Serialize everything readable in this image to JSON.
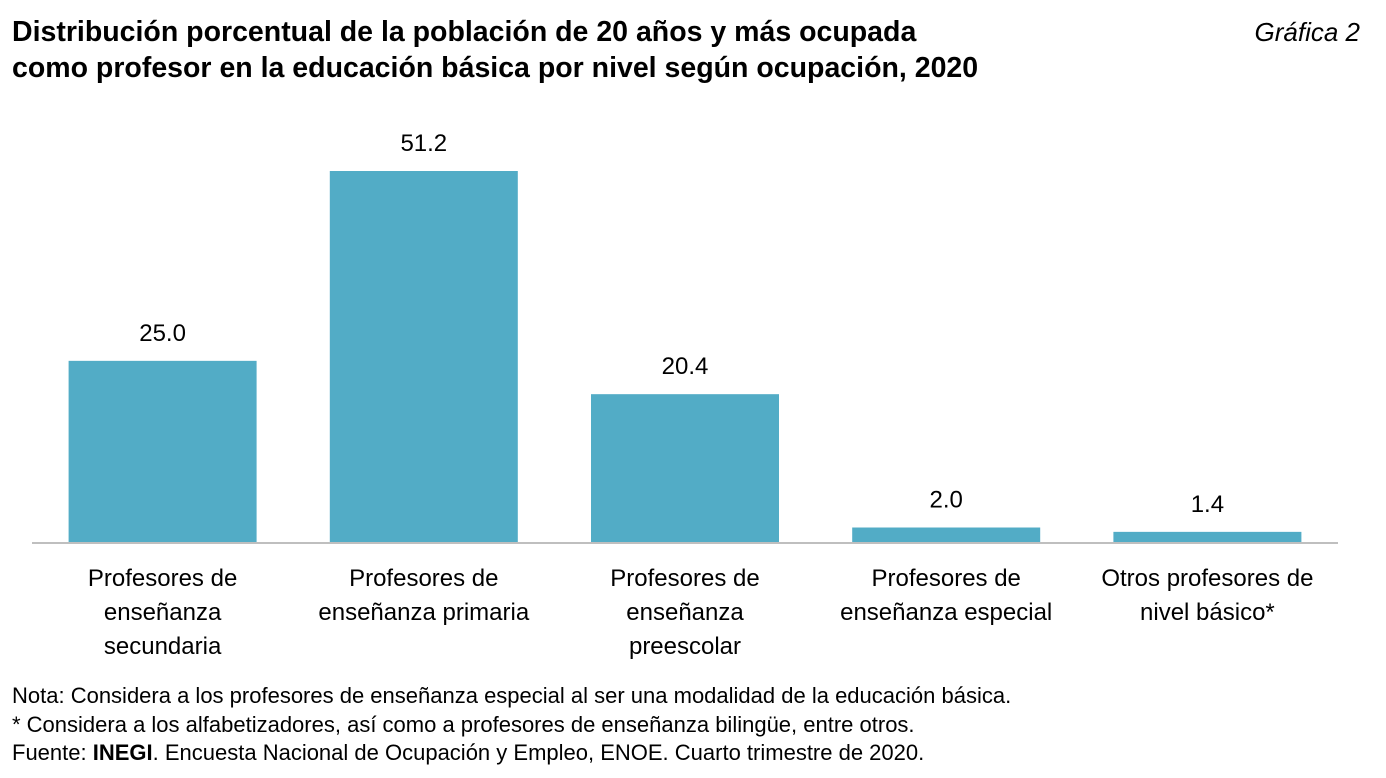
{
  "header": {
    "title_line1": "Distribución porcentual de la población de 20 años y más ocupada",
    "title_line2": "como profesor en la educación básica por nivel según ocupación, 2020",
    "figure_label": "Gráfica 2"
  },
  "chart_data": {
    "type": "bar",
    "title": "Distribución porcentual de la población de 20 años y más ocupada como profesor en la educación básica por nivel según ocupación, 2020",
    "categories": [
      [
        "Profesores de",
        "enseñanza",
        "secundaria"
      ],
      [
        "Profesores de",
        "enseñanza primaria"
      ],
      [
        "Profesores de",
        "enseñanza",
        "preescolar"
      ],
      [
        "Profesores de",
        "enseñanza especial"
      ],
      [
        "Otros profesores de",
        "nivel básico*"
      ]
    ],
    "values": [
      25.0,
      51.2,
      20.4,
      2.0,
      1.4
    ],
    "value_labels": [
      "25.0",
      "51.2",
      "20.4",
      "2.0",
      "1.4"
    ],
    "xlabel": "",
    "ylabel": "",
    "ylim": [
      0,
      51.2
    ],
    "grid": false,
    "legend": "none",
    "bar_color": "#52acc6",
    "axis_color": "#bfbfbf"
  },
  "notes": {
    "nota": "Nota: Considera a los profesores de enseñanza especial al ser una modalidad de la educación básica.",
    "asterisk": "* Considera a los alfabetizadores, así como a profesores de enseñanza bilingüe, entre otros.",
    "fuente_prefix": "Fuente: ",
    "fuente_org": "INEGI",
    "fuente_rest": ". Encuesta Nacional de Ocupación y Empleo, ENOE. Cuarto trimestre de 2020."
  }
}
